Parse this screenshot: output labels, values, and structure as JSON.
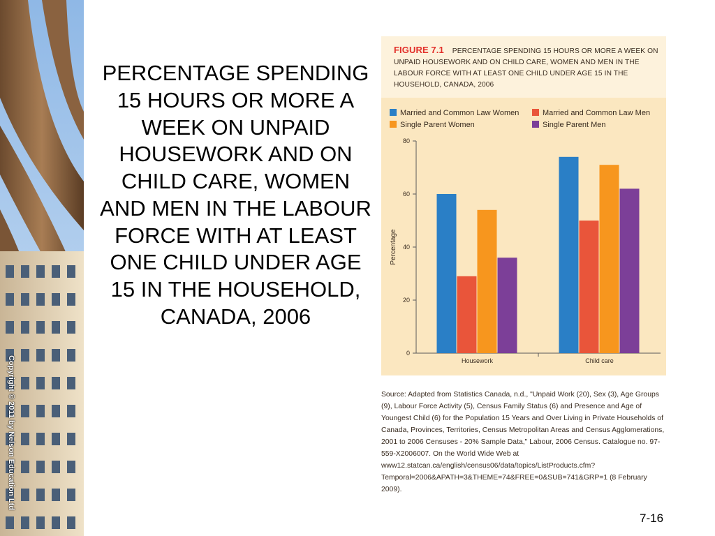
{
  "slide": {
    "title": "PERCENTAGE SPENDING 15 HOURS OR MORE A WEEK ON UNPAID HOUSEWORK AND ON CHILD CARE, WOMEN AND MEN IN THE LABOUR FORCE WITH AT LEAST ONE CHILD UNDER AGE 15 IN THE HOUSEHOLD, CANADA, 2006",
    "copyright": "Copyright © 2011 by Nelson Education Ltd",
    "page_number": "7-16"
  },
  "figure": {
    "label": "FIGURE 7.1",
    "caption": "PERCENTAGE SPENDING 15 HOURS OR MORE A WEEK ON UNPAID HOUSEWORK AND ON CHILD CARE, WOMEN AND MEN IN THE LABOUR FORCE WITH AT LEAST ONE CHILD UNDER AGE 15 IN THE HOUSEHOLD, CANADA, 2006",
    "source": "Source: Adapted from Statistics Canada, n.d., \"Unpaid Work (20), Sex (3), Age Groups (9), Labour Force Activity (5), Census Family Status (6) and Presence and Age of Youngest Child (6) for the Population 15 Years and Over Living in Private Households of Canada, Provinces, Territories, Census Metropolitan Areas and Census Agglomerations, 2001 to 2006 Censuses - 20% Sample Data,\" Labour, 2006 Census. Catalogue no. 97-559-X2006007. On the World Wide Web at www12.statcan.ca/english/census06/data/topics/ListProducts.cfm?Temporal=2006&APATH=3&THEME=74&FREE=0&SUB=741&GRP=1 (8 February 2009)."
  },
  "chart_data": {
    "type": "bar",
    "title": "",
    "xlabel": "",
    "ylabel": "Percentage",
    "categories": [
      "Housework",
      "Child care"
    ],
    "ylim": [
      0,
      80
    ],
    "yticks": [
      0,
      20,
      40,
      60,
      80
    ],
    "grid": false,
    "legend_position": "top",
    "series": [
      {
        "name": "Married and Common Law Women",
        "color": "#2a7fc6",
        "values": [
          60,
          74
        ]
      },
      {
        "name": "Married and Common Law Men",
        "color": "#e9553a",
        "values": [
          29,
          50
        ]
      },
      {
        "name": "Single Parent Women",
        "color": "#f7961e",
        "values": [
          54,
          71
        ]
      },
      {
        "name": "Single Parent Men",
        "color": "#7c3f98",
        "values": [
          36,
          62
        ]
      }
    ]
  }
}
